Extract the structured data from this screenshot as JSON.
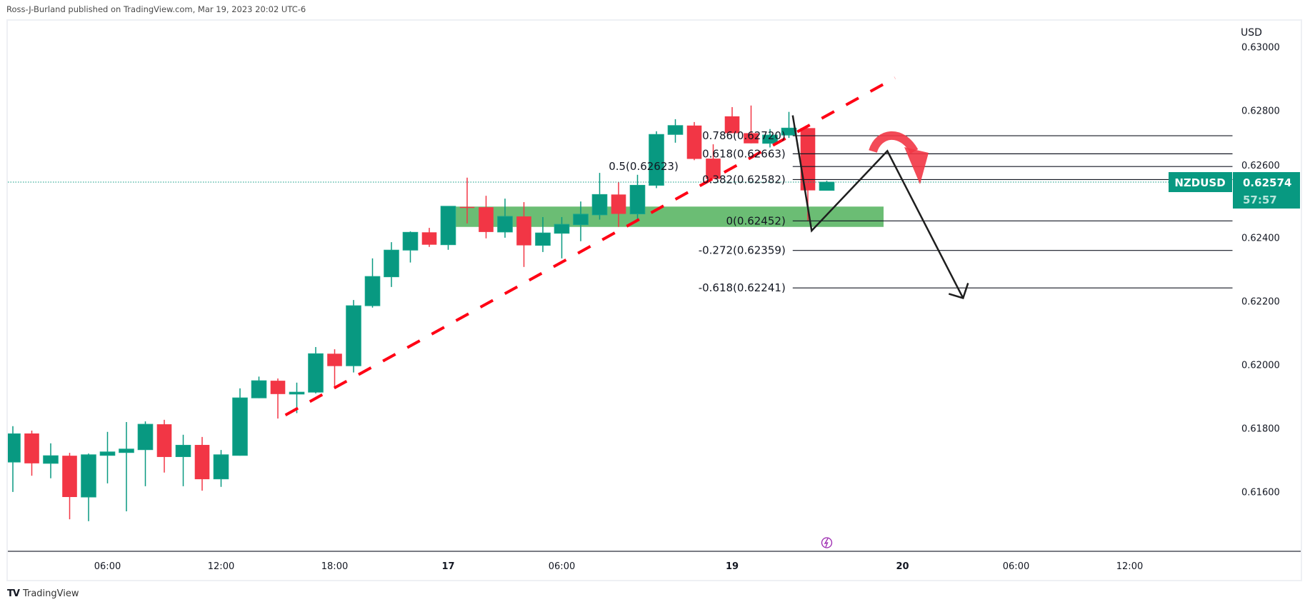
{
  "header": {
    "text": "Ross-J-Burland published on TradingView.com, Mar 19, 2023 20:02 UTC-6"
  },
  "logo": {
    "mark": "TV",
    "text": "TradingView"
  },
  "colors": {
    "up": "#089981",
    "down": "#f23645",
    "zone": "#6bbd74",
    "trend": "#ff0014",
    "fib": "#131722",
    "event": "#9c27b0"
  },
  "symbol": {
    "name": "NZDUSD",
    "last_price": "0.62574",
    "countdown": "57:57",
    "currency": "USD"
  },
  "chart_data": {
    "type": "candlestick",
    "interval": "1h",
    "ylim": [
      0.6145,
      0.631
    ],
    "y_ticks": [
      "0.63000",
      "0.62800",
      "0.62600",
      "0.62400",
      "0.62200",
      "0.62000",
      "0.61800",
      "0.61600"
    ],
    "y_tick_values": [
      0.63,
      0.628,
      0.626,
      0.624,
      0.622,
      0.62,
      0.618,
      0.616
    ],
    "x_ticks": [
      {
        "label": "06:00",
        "index": 5,
        "bold": false
      },
      {
        "label": "12:00",
        "index": 11,
        "bold": false
      },
      {
        "label": "18:00",
        "index": 17,
        "bold": false
      },
      {
        "label": "17",
        "index": 23,
        "bold": true
      },
      {
        "label": "06:00",
        "index": 29,
        "bold": false
      },
      {
        "label": "19",
        "index": 38,
        "bold": true
      },
      {
        "label": "20",
        "index": 47,
        "bold": true
      },
      {
        "label": "06:00",
        "index": 53,
        "bold": false
      },
      {
        "label": "12:00",
        "index": 59,
        "bold": false
      }
    ],
    "ohlc": [
      [
        0.61693,
        0.61806,
        0.61599,
        0.61782
      ],
      [
        0.61783,
        0.61792,
        0.6165,
        0.61689
      ],
      [
        0.61689,
        0.61752,
        0.61642,
        0.61713
      ],
      [
        0.61713,
        0.61722,
        0.61513,
        0.61583
      ],
      [
        0.61583,
        0.6172,
        0.61507,
        0.61716
      ],
      [
        0.61714,
        0.61788,
        0.61626,
        0.61725
      ],
      [
        0.61723,
        0.61819,
        0.61538,
        0.61734
      ],
      [
        0.61732,
        0.61821,
        0.61617,
        0.61812
      ],
      [
        0.61812,
        0.61826,
        0.6166,
        0.61709
      ],
      [
        0.6171,
        0.61779,
        0.61617,
        0.61746
      ],
      [
        0.61747,
        0.61772,
        0.61603,
        0.61639
      ],
      [
        0.6164,
        0.61731,
        0.61615,
        0.61716
      ],
      [
        0.61714,
        0.61925,
        0.61713,
        0.61895
      ],
      [
        0.61895,
        0.61962,
        0.61894,
        0.61949
      ],
      [
        0.61949,
        0.61956,
        0.6183,
        0.61907
      ],
      [
        0.61907,
        0.61943,
        0.61847,
        0.61913
      ],
      [
        0.61913,
        0.62055,
        0.61909,
        0.62034
      ],
      [
        0.62034,
        0.62048,
        0.61931,
        0.61995
      ],
      [
        0.61996,
        0.62203,
        0.61975,
        0.62185
      ],
      [
        0.62185,
        0.62334,
        0.62179,
        0.62277
      ],
      [
        0.62276,
        0.62385,
        0.62244,
        0.6236
      ],
      [
        0.6236,
        0.62419,
        0.62321,
        0.62416
      ],
      [
        0.62416,
        0.6243,
        0.6237,
        0.62377
      ],
      [
        0.62377,
        0.62498,
        0.62361,
        0.62498
      ],
      [
        0.62496,
        0.62588,
        0.62444,
        0.62493
      ],
      [
        0.62495,
        0.62531,
        0.62397,
        0.62417
      ],
      [
        0.62417,
        0.62522,
        0.62399,
        0.62466
      ],
      [
        0.62466,
        0.62511,
        0.62307,
        0.62375
      ],
      [
        0.62375,
        0.62464,
        0.62354,
        0.62414
      ],
      [
        0.62413,
        0.62464,
        0.62334,
        0.62441
      ],
      [
        0.6244,
        0.62513,
        0.62388,
        0.62473
      ],
      [
        0.62471,
        0.62603,
        0.62456,
        0.62535
      ],
      [
        0.62535,
        0.62574,
        0.62433,
        0.62474
      ],
      [
        0.62474,
        0.62597,
        0.62459,
        0.62564
      ],
      [
        0.62564,
        0.62734,
        0.62555,
        0.62724
      ],
      [
        0.62724,
        0.62772,
        0.62698,
        0.62752
      ],
      [
        0.62752,
        0.62763,
        0.62643,
        0.62647
      ],
      [
        0.62648,
        0.62693,
        0.62584,
        0.62584
      ],
      [
        0.62781,
        0.6281,
        0.62728,
        0.62728
      ],
      [
        0.62728,
        0.62815,
        0.62696,
        0.62696
      ],
      [
        0.62696,
        0.62741,
        0.62683,
        0.62722
      ],
      [
        0.62722,
        0.62795,
        0.62713,
        0.62744
      ],
      [
        0.62744,
        0.62744,
        0.62452,
        0.62548
      ],
      [
        0.62548,
        0.62578,
        0.62548,
        0.62574
      ]
    ],
    "fib_levels": [
      {
        "label": "0.786(0.62720)",
        "price": 0.6272
      },
      {
        "label": "0.618(0.62663)",
        "price": 0.62663
      },
      {
        "label": "0.5(0.62623)",
        "price": 0.62623
      },
      {
        "label": "0.382(0.62582)",
        "price": 0.62582
      },
      {
        "label": "0(0.62452)",
        "price": 0.62452
      },
      {
        "label": "-0.272(0.62359)",
        "price": 0.62359
      },
      {
        "label": "-0.618(0.62241)",
        "price": 0.62241
      }
    ],
    "fib_start_index": 41.2,
    "support_zone": {
      "from_index": 23.4,
      "to_index": 46,
      "top": 0.62497,
      "bottom": 0.62433
    },
    "trendline": {
      "from": [
        14.4,
        0.61841
      ],
      "to": [
        46.6,
        0.62902
      ]
    },
    "projection_path": [
      [
        41.2,
        0.62784
      ],
      [
        42.2,
        0.62421
      ],
      [
        46.2,
        0.62672
      ],
      [
        50.2,
        0.62209
      ]
    ],
    "event_marker_index": 43
  }
}
